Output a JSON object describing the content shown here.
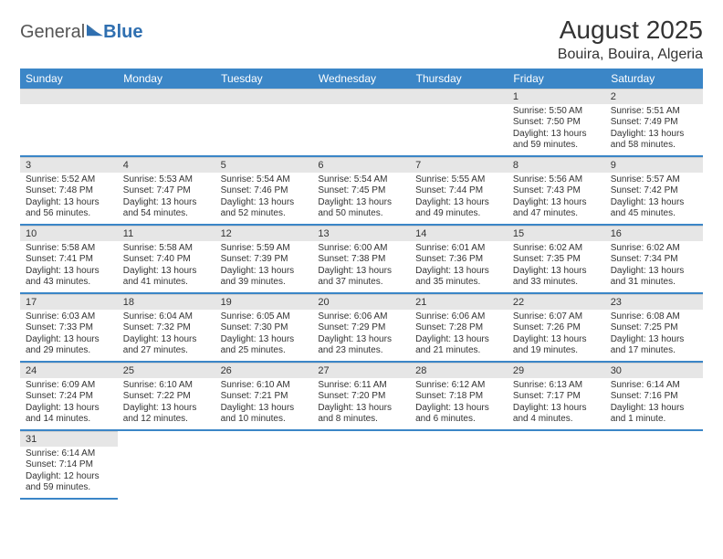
{
  "logo": {
    "text1": "General",
    "text2": "Blue"
  },
  "title": "August 2025",
  "location": "Bouira, Bouira, Algeria",
  "colors": {
    "header_bg": "#3b86c7",
    "header_fg": "#ffffff",
    "daynum_bg": "#e6e6e6",
    "row_border": "#3b86c7",
    "text": "#333333"
  },
  "weekdays": [
    "Sunday",
    "Monday",
    "Tuesday",
    "Wednesday",
    "Thursday",
    "Friday",
    "Saturday"
  ],
  "first_weekday_index": 5,
  "days": [
    {
      "n": 1,
      "sunrise": "5:50 AM",
      "sunset": "7:50 PM",
      "daylight": "13 hours and 59 minutes."
    },
    {
      "n": 2,
      "sunrise": "5:51 AM",
      "sunset": "7:49 PM",
      "daylight": "13 hours and 58 minutes."
    },
    {
      "n": 3,
      "sunrise": "5:52 AM",
      "sunset": "7:48 PM",
      "daylight": "13 hours and 56 minutes."
    },
    {
      "n": 4,
      "sunrise": "5:53 AM",
      "sunset": "7:47 PM",
      "daylight": "13 hours and 54 minutes."
    },
    {
      "n": 5,
      "sunrise": "5:54 AM",
      "sunset": "7:46 PM",
      "daylight": "13 hours and 52 minutes."
    },
    {
      "n": 6,
      "sunrise": "5:54 AM",
      "sunset": "7:45 PM",
      "daylight": "13 hours and 50 minutes."
    },
    {
      "n": 7,
      "sunrise": "5:55 AM",
      "sunset": "7:44 PM",
      "daylight": "13 hours and 49 minutes."
    },
    {
      "n": 8,
      "sunrise": "5:56 AM",
      "sunset": "7:43 PM",
      "daylight": "13 hours and 47 minutes."
    },
    {
      "n": 9,
      "sunrise": "5:57 AM",
      "sunset": "7:42 PM",
      "daylight": "13 hours and 45 minutes."
    },
    {
      "n": 10,
      "sunrise": "5:58 AM",
      "sunset": "7:41 PM",
      "daylight": "13 hours and 43 minutes."
    },
    {
      "n": 11,
      "sunrise": "5:58 AM",
      "sunset": "7:40 PM",
      "daylight": "13 hours and 41 minutes."
    },
    {
      "n": 12,
      "sunrise": "5:59 AM",
      "sunset": "7:39 PM",
      "daylight": "13 hours and 39 minutes."
    },
    {
      "n": 13,
      "sunrise": "6:00 AM",
      "sunset": "7:38 PM",
      "daylight": "13 hours and 37 minutes."
    },
    {
      "n": 14,
      "sunrise": "6:01 AM",
      "sunset": "7:36 PM",
      "daylight": "13 hours and 35 minutes."
    },
    {
      "n": 15,
      "sunrise": "6:02 AM",
      "sunset": "7:35 PM",
      "daylight": "13 hours and 33 minutes."
    },
    {
      "n": 16,
      "sunrise": "6:02 AM",
      "sunset": "7:34 PM",
      "daylight": "13 hours and 31 minutes."
    },
    {
      "n": 17,
      "sunrise": "6:03 AM",
      "sunset": "7:33 PM",
      "daylight": "13 hours and 29 minutes."
    },
    {
      "n": 18,
      "sunrise": "6:04 AM",
      "sunset": "7:32 PM",
      "daylight": "13 hours and 27 minutes."
    },
    {
      "n": 19,
      "sunrise": "6:05 AM",
      "sunset": "7:30 PM",
      "daylight": "13 hours and 25 minutes."
    },
    {
      "n": 20,
      "sunrise": "6:06 AM",
      "sunset": "7:29 PM",
      "daylight": "13 hours and 23 minutes."
    },
    {
      "n": 21,
      "sunrise": "6:06 AM",
      "sunset": "7:28 PM",
      "daylight": "13 hours and 21 minutes."
    },
    {
      "n": 22,
      "sunrise": "6:07 AM",
      "sunset": "7:26 PM",
      "daylight": "13 hours and 19 minutes."
    },
    {
      "n": 23,
      "sunrise": "6:08 AM",
      "sunset": "7:25 PM",
      "daylight": "13 hours and 17 minutes."
    },
    {
      "n": 24,
      "sunrise": "6:09 AM",
      "sunset": "7:24 PM",
      "daylight": "13 hours and 14 minutes."
    },
    {
      "n": 25,
      "sunrise": "6:10 AM",
      "sunset": "7:22 PM",
      "daylight": "13 hours and 12 minutes."
    },
    {
      "n": 26,
      "sunrise": "6:10 AM",
      "sunset": "7:21 PM",
      "daylight": "13 hours and 10 minutes."
    },
    {
      "n": 27,
      "sunrise": "6:11 AM",
      "sunset": "7:20 PM",
      "daylight": "13 hours and 8 minutes."
    },
    {
      "n": 28,
      "sunrise": "6:12 AM",
      "sunset": "7:18 PM",
      "daylight": "13 hours and 6 minutes."
    },
    {
      "n": 29,
      "sunrise": "6:13 AM",
      "sunset": "7:17 PM",
      "daylight": "13 hours and 4 minutes."
    },
    {
      "n": 30,
      "sunrise": "6:14 AM",
      "sunset": "7:16 PM",
      "daylight": "13 hours and 1 minute."
    },
    {
      "n": 31,
      "sunrise": "6:14 AM",
      "sunset": "7:14 PM",
      "daylight": "12 hours and 59 minutes."
    }
  ],
  "labels": {
    "sunrise": "Sunrise:",
    "sunset": "Sunset:",
    "daylight": "Daylight:"
  }
}
